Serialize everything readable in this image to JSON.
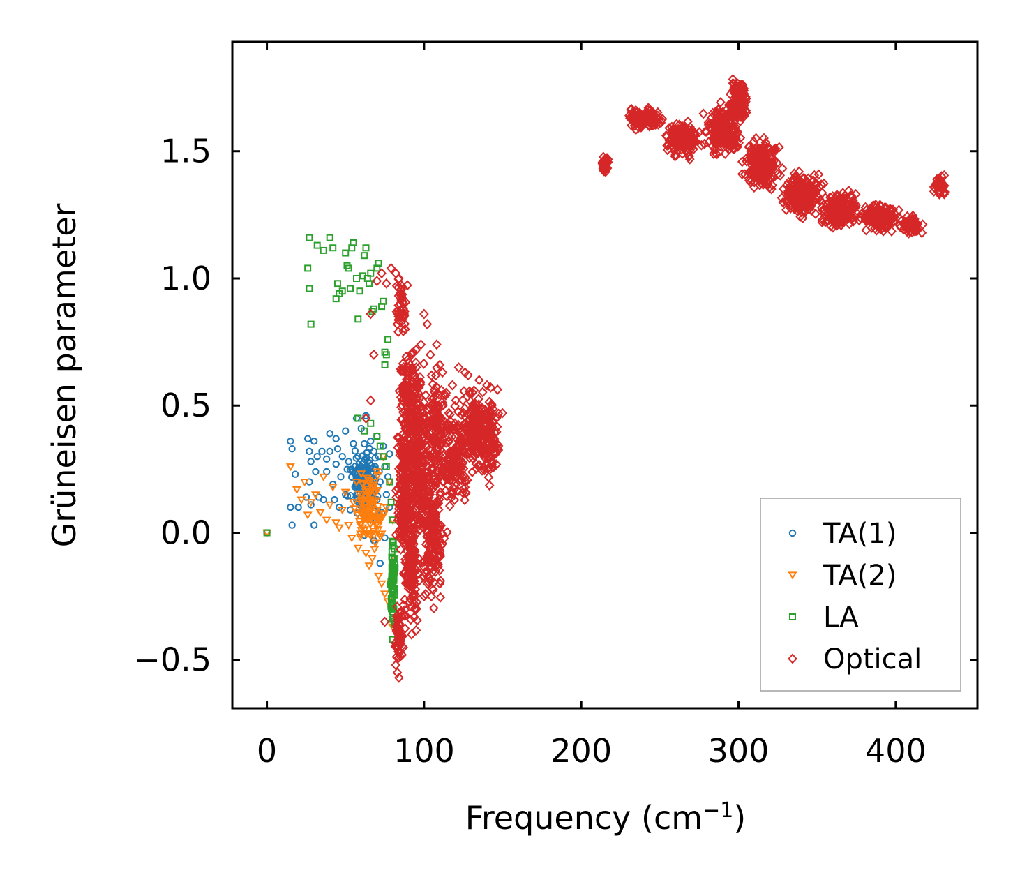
{
  "chart_data": {
    "type": "scatter",
    "title": "",
    "xlabel": "Frequency (cm",
    "xlabel_superscript": "−1",
    "xlabel_suffix": ")",
    "ylabel": "Grüneisen parameter",
    "xlim": [
      -22,
      452
    ],
    "ylim": [
      -0.69,
      1.93
    ],
    "xticks": [
      0,
      100,
      200,
      300,
      400
    ],
    "xtick_labels": [
      "0",
      "100",
      "200",
      "300",
      "400"
    ],
    "yticks": [
      -0.5,
      0.0,
      0.5,
      1.0,
      1.5
    ],
    "ytick_labels": [
      "−0.5",
      "0.0",
      "0.5",
      "1.0",
      "1.5"
    ],
    "grid": false,
    "legend_position": "lower-right",
    "series": [
      {
        "name": "TA(1)",
        "marker": "circle",
        "color": "#1f77b4",
        "points": [
          [
            0,
            0
          ],
          [
            15,
            0.36
          ],
          [
            16,
            0.33
          ],
          [
            18,
            0.23
          ],
          [
            15,
            0.1
          ],
          [
            16,
            0.03
          ],
          [
            20,
            0.1
          ],
          [
            25,
            0.14
          ],
          [
            26,
            0.37
          ],
          [
            27,
            0.32
          ],
          [
            27,
            0.2
          ],
          [
            28,
            0.28
          ],
          [
            28,
            0.11
          ],
          [
            30,
            0.36
          ],
          [
            30,
            0.03
          ],
          [
            31,
            0.24
          ],
          [
            32,
            0.3
          ],
          [
            33,
            0.14
          ],
          [
            35,
            0.32
          ],
          [
            36,
            0.13
          ],
          [
            38,
            0.29
          ],
          [
            38,
            0.24
          ],
          [
            40,
            0.39
          ],
          [
            40,
            0.32
          ],
          [
            42,
            0.19
          ],
          [
            43,
            0.13
          ],
          [
            44,
            0.37
          ],
          [
            44,
            0.27
          ],
          [
            45,
            0.33
          ],
          [
            46,
            0.1
          ],
          [
            47,
            0.22
          ],
          [
            48,
            0.3
          ],
          [
            50,
            0.4
          ],
          [
            50,
            0.15
          ],
          [
            52,
            0.28
          ],
          [
            53,
            0.09
          ],
          [
            54,
            0.25
          ],
          [
            55,
            0.35
          ],
          [
            56,
            0.18
          ],
          [
            57,
            0.45
          ],
          [
            58,
            0.12
          ],
          [
            58,
            0.3
          ],
          [
            60,
            0.26
          ],
          [
            60,
            0.41
          ],
          [
            61,
            0.2
          ],
          [
            62,
            0.35
          ],
          [
            62,
            -0.01
          ],
          [
            63,
            0.46
          ],
          [
            64,
            0.09
          ],
          [
            64,
            0.28
          ],
          [
            65,
            0.22
          ],
          [
            66,
            0.36
          ],
          [
            66,
            0.05
          ],
          [
            67,
            0.16
          ],
          [
            68,
            0.32
          ],
          [
            68,
            -0.03
          ],
          [
            69,
            0.25
          ],
          [
            70,
            0.13
          ],
          [
            70,
            0.38
          ],
          [
            71,
            0.3
          ],
          [
            72,
            0.2
          ],
          [
            72,
            -0.12
          ],
          [
            73,
            0.08
          ],
          [
            74,
            0.34
          ],
          [
            75,
            0.26
          ],
          [
            75,
            -0.02
          ],
          [
            76,
            0.15
          ],
          [
            77,
            0.22
          ],
          [
            78,
            0.31
          ],
          [
            78,
            0.1
          ]
        ],
        "clouds": [
          {
            "cx": 62,
            "cy": 0.2,
            "sx": 7,
            "sy": 0.09,
            "n": 150
          }
        ]
      },
      {
        "name": "TA(2)",
        "marker": "triangle-down",
        "color": "#ff7f0e",
        "points": [
          [
            0,
            0
          ],
          [
            15,
            0.26
          ],
          [
            19,
            0.17
          ],
          [
            22,
            0.13
          ],
          [
            24,
            0.2
          ],
          [
            26,
            0.07
          ],
          [
            28,
            0.12
          ],
          [
            31,
            0.15
          ],
          [
            34,
            0.08
          ],
          [
            36,
            0.22
          ],
          [
            38,
            0.05
          ],
          [
            40,
            0.11
          ],
          [
            42,
            0.18
          ],
          [
            44,
            0.04
          ],
          [
            46,
            0.02
          ],
          [
            48,
            0.09
          ],
          [
            50,
            0.16
          ],
          [
            52,
            0.03
          ],
          [
            54,
            -0.02
          ],
          [
            55,
            0.12
          ],
          [
            57,
            0.2
          ],
          [
            58,
            -0.06
          ],
          [
            60,
            0.08
          ],
          [
            61,
            0.02
          ],
          [
            63,
            -0.08
          ],
          [
            64,
            0.15
          ],
          [
            65,
            -0.13
          ],
          [
            66,
            0.05
          ],
          [
            67,
            -0.1
          ],
          [
            68,
            0.18
          ],
          [
            69,
            -0.04
          ],
          [
            70,
            0.24
          ],
          [
            71,
            -0.17
          ],
          [
            72,
            0.06
          ],
          [
            73,
            -0.2
          ],
          [
            74,
            0.3
          ],
          [
            75,
            -0.24
          ],
          [
            76,
            0.1
          ],
          [
            77,
            -0.27
          ],
          [
            78,
            0.2
          ],
          [
            79,
            -0.3
          ],
          [
            80,
            0.05
          ],
          [
            80,
            -0.37
          ],
          [
            81,
            -0.1
          ]
        ],
        "clouds": [
          {
            "cx": 66,
            "cy": 0.08,
            "sx": 7,
            "sy": 0.1,
            "n": 90
          }
        ]
      },
      {
        "name": "LA",
        "marker": "square",
        "color": "#2ca02c",
        "points": [
          [
            0,
            0
          ],
          [
            27,
            1.16
          ],
          [
            26,
            1.04
          ],
          [
            27,
            0.96
          ],
          [
            28,
            0.82
          ],
          [
            32,
            1.13
          ],
          [
            36,
            1.11
          ],
          [
            40,
            1.16
          ],
          [
            42,
            1.12
          ],
          [
            45,
            0.98
          ],
          [
            46,
            0.94
          ],
          [
            44,
            0.92
          ],
          [
            48,
            0.95
          ],
          [
            50,
            1.1
          ],
          [
            51,
            1.05
          ],
          [
            52,
            1.04
          ],
          [
            53,
            0.96
          ],
          [
            54,
            1.12
          ],
          [
            55,
            1.14
          ],
          [
            57,
            1.0
          ],
          [
            58,
            0.84
          ],
          [
            59,
            0.95
          ],
          [
            61,
            1.01
          ],
          [
            62,
            1.09
          ],
          [
            63,
            1.12
          ],
          [
            64,
            1.0
          ],
          [
            65,
            0.98
          ],
          [
            66,
            1.02
          ],
          [
            67,
            0.87
          ],
          [
            68,
            0.88
          ],
          [
            70,
            1.04
          ],
          [
            71,
            1.06
          ],
          [
            73,
            0.89
          ],
          [
            74,
            0.91
          ],
          [
            75,
            0.71
          ],
          [
            75,
            0.66
          ],
          [
            76,
            0.7
          ],
          [
            77,
            0.76
          ],
          [
            58,
            0.45
          ],
          [
            62,
            0.4
          ],
          [
            66,
            0.43
          ],
          [
            70,
            0.38
          ],
          [
            72,
            0.34
          ],
          [
            74,
            0.3
          ],
          [
            76,
            0.26
          ],
          [
            78,
            0.2
          ],
          [
            79,
            0.12
          ],
          [
            80,
            0.05
          ],
          [
            80,
            -0.05
          ],
          [
            81,
            -0.15
          ],
          [
            81,
            -0.22
          ],
          [
            80,
            -0.3
          ],
          [
            81,
            -0.36
          ],
          [
            80,
            -0.42
          ]
        ],
        "clouds": [
          {
            "cx": 80,
            "cy": -0.2,
            "sx": 1.2,
            "sy": 0.13,
            "n": 60
          }
        ]
      },
      {
        "name": "Optical",
        "marker": "diamond",
        "color": "#d62728",
        "points": [
          [
            63,
            0.45
          ],
          [
            66,
            0.52
          ],
          [
            68,
            0.7
          ],
          [
            66,
            0.86
          ],
          [
            70,
            0.99
          ],
          [
            73,
            1.02
          ],
          [
            76,
            0.98
          ],
          [
            79,
            1.04
          ],
          [
            82,
            1.02
          ],
          [
            84,
            1.0
          ],
          [
            86,
            0.92
          ],
          [
            83,
            0.82
          ],
          [
            88,
            0.8
          ],
          [
            92,
            0.7
          ],
          [
            95,
            0.65
          ],
          [
            98,
            0.74
          ],
          [
            100,
            0.86
          ],
          [
            102,
            0.82
          ],
          [
            104,
            0.7
          ],
          [
            108,
            0.74
          ],
          [
            110,
            0.66
          ],
          [
            111,
            0.56
          ],
          [
            114,
            0.55
          ],
          [
            118,
            0.58
          ],
          [
            122,
            0.65
          ],
          [
            126,
            0.63
          ],
          [
            128,
            0.62
          ],
          [
            135,
            0.6
          ],
          [
            140,
            0.58
          ],
          [
            83,
            -0.55
          ],
          [
            84,
            -0.57
          ],
          [
            82,
            -0.52
          ],
          [
            86,
            -0.48
          ],
          [
            75,
            -0.35
          ],
          [
            92,
            -0.4
          ],
          [
            95,
            -0.3
          ],
          [
            100,
            -0.25
          ],
          [
            105,
            -0.22
          ],
          [
            110,
            -0.2
          ]
        ],
        "clouds": [
          {
            "cx": 85,
            "cy": 0.88,
            "sx": 3,
            "sy": 0.1,
            "n": 40
          },
          {
            "cx": 90,
            "cy": 0.5,
            "sx": 5,
            "sy": 0.18,
            "n": 140
          },
          {
            "cx": 88,
            "cy": 0.15,
            "sx": 4,
            "sy": 0.2,
            "n": 200
          },
          {
            "cx": 92,
            "cy": -0.15,
            "sx": 4,
            "sy": 0.15,
            "n": 140
          },
          {
            "cx": 97,
            "cy": 0.3,
            "sx": 5,
            "sy": 0.25,
            "n": 240
          },
          {
            "cx": 105,
            "cy": 0.0,
            "sx": 6,
            "sy": 0.2,
            "n": 180
          },
          {
            "cx": 108,
            "cy": 0.4,
            "sx": 6,
            "sy": 0.18,
            "n": 140
          },
          {
            "cx": 120,
            "cy": 0.3,
            "sx": 7,
            "sy": 0.15,
            "n": 150
          },
          {
            "cx": 132,
            "cy": 0.4,
            "sx": 7,
            "sy": 0.12,
            "n": 160
          },
          {
            "cx": 142,
            "cy": 0.38,
            "sx": 5,
            "sy": 0.12,
            "n": 100
          },
          {
            "cx": 84,
            "cy": -0.4,
            "sx": 2,
            "sy": 0.1,
            "n": 60
          },
          {
            "cx": 215,
            "cy": 1.45,
            "sx": 2,
            "sy": 0.03,
            "n": 40
          },
          {
            "cx": 240,
            "cy": 1.63,
            "sx": 8,
            "sy": 0.03,
            "n": 120
          },
          {
            "cx": 265,
            "cy": 1.55,
            "sx": 8,
            "sy": 0.05,
            "n": 160
          },
          {
            "cx": 290,
            "cy": 1.58,
            "sx": 8,
            "sy": 0.07,
            "n": 200
          },
          {
            "cx": 300,
            "cy": 1.7,
            "sx": 4,
            "sy": 0.06,
            "n": 120
          },
          {
            "cx": 315,
            "cy": 1.45,
            "sx": 8,
            "sy": 0.07,
            "n": 220
          },
          {
            "cx": 340,
            "cy": 1.33,
            "sx": 9,
            "sy": 0.06,
            "n": 240
          },
          {
            "cx": 365,
            "cy": 1.27,
            "sx": 9,
            "sy": 0.05,
            "n": 200
          },
          {
            "cx": 390,
            "cy": 1.24,
            "sx": 9,
            "sy": 0.04,
            "n": 160
          },
          {
            "cx": 410,
            "cy": 1.21,
            "sx": 5,
            "sy": 0.03,
            "n": 80
          },
          {
            "cx": 428,
            "cy": 1.37,
            "sx": 3,
            "sy": 0.03,
            "n": 50
          }
        ]
      }
    ]
  }
}
